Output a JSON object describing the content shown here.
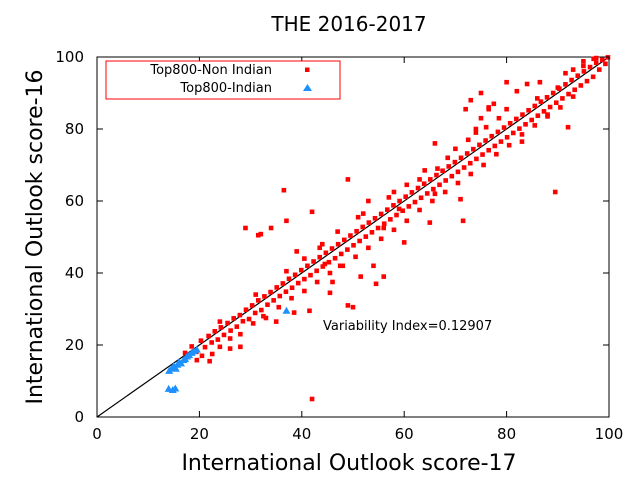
{
  "chart_data": {
    "type": "scatter",
    "title": "THE 2016-2017",
    "xlabel": "International Outlook score-17",
    "ylabel": "International Outlook score-16",
    "xlim": [
      0,
      100
    ],
    "ylim": [
      0,
      100
    ],
    "xticks": [
      0,
      20,
      40,
      60,
      80,
      100
    ],
    "yticks": [
      0,
      20,
      40,
      60,
      80,
      100
    ],
    "grid": false,
    "legend_position": "top-left",
    "reference_line": {
      "from": [
        0,
        0
      ],
      "to": [
        100,
        100
      ]
    },
    "annotation": "Variability Index=0.12907",
    "series": [
      {
        "name": "Top800-Non Indian",
        "marker": "square",
        "color": "#ff0000",
        "points": [
          [
            17.2,
            17.8
          ],
          [
            18.5,
            19.6
          ],
          [
            19.4,
            18.1
          ],
          [
            20.3,
            21.2
          ],
          [
            21.1,
            19.4
          ],
          [
            21.8,
            22.5
          ],
          [
            22.4,
            20.7
          ],
          [
            23.0,
            23.8
          ],
          [
            23.6,
            21.5
          ],
          [
            24.2,
            24.9
          ],
          [
            24.8,
            22.8
          ],
          [
            25.5,
            26.1
          ],
          [
            26.1,
            24.0
          ],
          [
            26.7,
            27.4
          ],
          [
            27.3,
            25.1
          ],
          [
            27.9,
            28.3
          ],
          [
            28.5,
            26.6
          ],
          [
            29.1,
            29.8
          ],
          [
            29.7,
            27.2
          ],
          [
            30.3,
            31.0
          ],
          [
            30.9,
            28.9
          ],
          [
            31.5,
            32.4
          ],
          [
            32.1,
            29.7
          ],
          [
            32.7,
            33.5
          ],
          [
            33.3,
            31.2
          ],
          [
            33.9,
            34.7
          ],
          [
            34.5,
            32.4
          ],
          [
            35.1,
            36.0
          ],
          [
            35.7,
            33.6
          ],
          [
            36.3,
            37.1
          ],
          [
            36.9,
            34.8
          ],
          [
            37.5,
            38.4
          ],
          [
            38.1,
            35.9
          ],
          [
            38.7,
            39.5
          ],
          [
            39.3,
            37.2
          ],
          [
            39.9,
            40.8
          ],
          [
            40.5,
            38.3
          ],
          [
            41.1,
            42.0
          ],
          [
            41.7,
            39.4
          ],
          [
            42.3,
            43.2
          ],
          [
            42.9,
            40.6
          ],
          [
            43.5,
            44.4
          ],
          [
            44.1,
            41.8
          ],
          [
            44.7,
            45.6
          ],
          [
            45.3,
            43.0
          ],
          [
            45.9,
            46.8
          ],
          [
            46.5,
            44.1
          ],
          [
            47.1,
            48.0
          ],
          [
            47.7,
            45.3
          ],
          [
            48.3,
            49.2
          ],
          [
            48.9,
            46.5
          ],
          [
            49.5,
            50.4
          ],
          [
            50.1,
            47.7
          ],
          [
            50.7,
            51.6
          ],
          [
            51.3,
            48.9
          ],
          [
            51.9,
            52.8
          ],
          [
            52.5,
            50.1
          ],
          [
            53.1,
            54.0
          ],
          [
            53.7,
            51.3
          ],
          [
            54.3,
            55.2
          ],
          [
            54.9,
            52.5
          ],
          [
            55.5,
            56.4
          ],
          [
            56.1,
            53.7
          ],
          [
            56.7,
            57.6
          ],
          [
            57.3,
            54.9
          ],
          [
            57.9,
            58.8
          ],
          [
            58.5,
            56.1
          ],
          [
            59.1,
            60.0
          ],
          [
            59.7,
            57.3
          ],
          [
            60.3,
            61.2
          ],
          [
            60.9,
            58.5
          ],
          [
            61.5,
            62.4
          ],
          [
            62.1,
            59.7
          ],
          [
            62.7,
            63.6
          ],
          [
            63.3,
            60.9
          ],
          [
            63.9,
            64.8
          ],
          [
            64.5,
            62.1
          ],
          [
            65.1,
            66.0
          ],
          [
            65.7,
            63.3
          ],
          [
            66.3,
            67.2
          ],
          [
            66.9,
            64.5
          ],
          [
            67.5,
            68.4
          ],
          [
            68.1,
            65.7
          ],
          [
            68.7,
            69.6
          ],
          [
            69.3,
            66.9
          ],
          [
            69.9,
            70.8
          ],
          [
            70.5,
            68.1
          ],
          [
            71.1,
            72.0
          ],
          [
            71.7,
            69.3
          ],
          [
            72.3,
            73.2
          ],
          [
            72.9,
            70.5
          ],
          [
            73.5,
            74.4
          ],
          [
            74.1,
            71.7
          ],
          [
            74.7,
            75.6
          ],
          [
            75.3,
            72.9
          ],
          [
            75.9,
            76.8
          ],
          [
            76.5,
            74.1
          ],
          [
            77.1,
            78.0
          ],
          [
            77.7,
            75.3
          ],
          [
            78.3,
            79.2
          ],
          [
            78.9,
            76.5
          ],
          [
            79.5,
            80.4
          ],
          [
            80.1,
            77.7
          ],
          [
            80.7,
            81.6
          ],
          [
            81.3,
            78.9
          ],
          [
            81.9,
            82.8
          ],
          [
            82.5,
            80.1
          ],
          [
            83.1,
            84.0
          ],
          [
            83.7,
            81.3
          ],
          [
            84.3,
            85.2
          ],
          [
            84.9,
            82.5
          ],
          [
            85.5,
            86.4
          ],
          [
            86.1,
            83.7
          ],
          [
            86.7,
            87.6
          ],
          [
            87.3,
            84.9
          ],
          [
            87.9,
            88.8
          ],
          [
            88.5,
            86.1
          ],
          [
            89.1,
            90.0
          ],
          [
            89.7,
            87.3
          ],
          [
            90.3,
            91.2
          ],
          [
            90.9,
            88.5
          ],
          [
            91.5,
            92.4
          ],
          [
            92.1,
            89.7
          ],
          [
            92.7,
            93.6
          ],
          [
            93.3,
            90.9
          ],
          [
            93.9,
            94.8
          ],
          [
            94.5,
            92.1
          ],
          [
            95.1,
            96.0
          ],
          [
            95.7,
            93.3
          ],
          [
            96.3,
            97.2
          ],
          [
            96.9,
            94.5
          ],
          [
            97.5,
            98.4
          ],
          [
            98.1,
            96.5
          ],
          [
            98.7,
            99.2
          ],
          [
            99.3,
            98.1
          ],
          [
            99.8,
            99.9
          ],
          [
            22.5,
            17.5
          ],
          [
            26.0,
            21.8
          ],
          [
            28.0,
            23.0
          ],
          [
            30.5,
            26.0
          ],
          [
            33.0,
            27.5
          ],
          [
            35.5,
            30.5
          ],
          [
            38.0,
            33.0
          ],
          [
            40.5,
            35.0
          ],
          [
            43.0,
            37.5
          ],
          [
            45.5,
            40.0
          ],
          [
            48.0,
            42.0
          ],
          [
            50.5,
            44.5
          ],
          [
            53.0,
            47.0
          ],
          [
            55.5,
            49.5
          ],
          [
            58.0,
            52.0
          ],
          [
            60.5,
            54.5
          ],
          [
            63.0,
            57.5
          ],
          [
            65.5,
            60.0
          ],
          [
            68.0,
            62.5
          ],
          [
            70.5,
            65.0
          ],
          [
            73.0,
            67.5
          ],
          [
            75.5,
            70.0
          ],
          [
            78.0,
            73.0
          ],
          [
            80.5,
            75.5
          ],
          [
            83.0,
            78.5
          ],
          [
            85.5,
            81.0
          ],
          [
            88.0,
            83.5
          ],
          [
            90.5,
            86.0
          ],
          [
            93.0,
            89.0
          ],
          [
            24.0,
            26.5
          ],
          [
            31.0,
            34.0
          ],
          [
            37.0,
            40.5
          ],
          [
            44.0,
            48.0
          ],
          [
            52.0,
            56.5
          ],
          [
            58.0,
            62.5
          ],
          [
            64.0,
            68.5
          ],
          [
            70.0,
            74.5
          ],
          [
            76.0,
            80.5
          ],
          [
            34.0,
            52.5
          ],
          [
            42.0,
            57.0
          ],
          [
            37.0,
            54.5
          ],
          [
            32.0,
            50.8
          ],
          [
            36.5,
            63.0
          ],
          [
            49.0,
            66.0
          ],
          [
            53.0,
            60.0
          ],
          [
            56.0,
            52.5
          ],
          [
            59.0,
            57.8
          ],
          [
            54.0,
            42.0
          ],
          [
            47.5,
            42.0
          ],
          [
            60.0,
            48.5
          ],
          [
            65.0,
            54.0
          ],
          [
            71.5,
            54.5
          ],
          [
            71.0,
            60.5
          ],
          [
            63.0,
            66.0
          ],
          [
            66.0,
            62.0
          ],
          [
            74.0,
            79.0
          ],
          [
            75.0,
            83.0
          ],
          [
            76.5,
            85.5
          ],
          [
            78.5,
            83.0
          ],
          [
            72.5,
            77.0
          ],
          [
            66.0,
            76.0
          ],
          [
            73.0,
            88.0
          ],
          [
            76.5,
            86.0
          ],
          [
            75.0,
            90.0
          ],
          [
            72.0,
            85.5
          ],
          [
            74.0,
            80.0
          ],
          [
            77.5,
            87.0
          ],
          [
            83.0,
            76.5
          ],
          [
            88.0,
            84.0
          ],
          [
            92.0,
            80.5
          ],
          [
            90.0,
            91.5
          ],
          [
            89.5,
            62.5
          ],
          [
            82.0,
            90.5
          ],
          [
            86.5,
            93.0
          ],
          [
            84.0,
            92.5
          ],
          [
            80.0,
            93.0
          ],
          [
            91.5,
            95.5
          ],
          [
            93.0,
            96.5
          ],
          [
            95.0,
            97.5
          ],
          [
            42.0,
            5.0
          ],
          [
            29.0,
            52.5
          ],
          [
            31.5,
            50.5
          ],
          [
            44.5,
            42.5
          ],
          [
            51.5,
            39.0
          ],
          [
            46.0,
            37.5
          ],
          [
            49.0,
            31.0
          ],
          [
            56.0,
            39.0
          ],
          [
            54.5,
            37.0
          ],
          [
            50.0,
            30.5
          ],
          [
            45.5,
            34.5
          ],
          [
            41.5,
            29.5
          ],
          [
            38.5,
            29.0
          ],
          [
            35.0,
            26.5
          ],
          [
            32.5,
            28.0
          ],
          [
            28.0,
            19.5
          ],
          [
            26.0,
            19.0
          ],
          [
            24.0,
            19.5
          ],
          [
            22.0,
            15.5
          ],
          [
            20.5,
            17.0
          ],
          [
            19.5,
            15.8
          ],
          [
            40.5,
            44.0
          ],
          [
            39.0,
            46.0
          ],
          [
            43.5,
            47.0
          ],
          [
            47.0,
            51.5
          ],
          [
            51.0,
            55.5
          ],
          [
            57.0,
            61.0
          ],
          [
            60.5,
            64.5
          ],
          [
            66.5,
            69.0
          ],
          [
            68.5,
            72.0
          ],
          [
            80.0,
            85.5
          ],
          [
            86.0,
            88.5
          ],
          [
            95.0,
            98.8
          ],
          [
            97.0,
            99.5
          ],
          [
            97.5,
            99.7
          ]
        ]
      },
      {
        "name": "Top800-Indian",
        "marker": "triangle",
        "color": "#1e90ff",
        "points": [
          [
            14.0,
            7.8
          ],
          [
            14.8,
            7.5
          ],
          [
            15.3,
            7.9
          ],
          [
            14.1,
            12.8
          ],
          [
            14.6,
            13.5
          ],
          [
            15.0,
            14.2
          ],
          [
            15.4,
            13.4
          ],
          [
            15.7,
            14.5
          ],
          [
            16.0,
            15.2
          ],
          [
            16.4,
            14.9
          ],
          [
            16.9,
            15.8
          ],
          [
            17.2,
            16.1
          ],
          [
            17.6,
            16.8
          ],
          [
            18.0,
            17.2
          ],
          [
            18.5,
            17.8
          ],
          [
            18.9,
            18.3
          ],
          [
            19.5,
            18.7
          ],
          [
            37.0,
            29.5
          ]
        ]
      }
    ]
  }
}
